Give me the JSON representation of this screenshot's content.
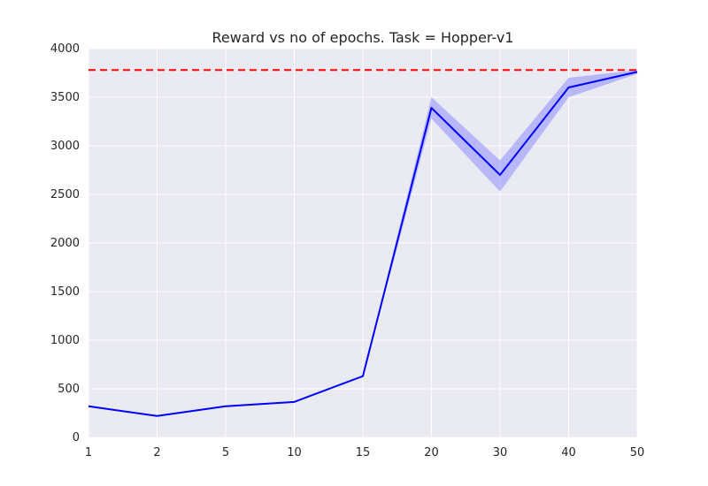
{
  "chart_data": {
    "type": "line",
    "title": "Reward vs no of epochs. Task = Hopper-v1",
    "xlabel": "",
    "ylabel": "",
    "categories": [
      "1",
      "2",
      "5",
      "10",
      "15",
      "20",
      "30",
      "40",
      "50"
    ],
    "x_scale": "categorical",
    "ylim": [
      0,
      4000
    ],
    "yticks": [
      0,
      500,
      1000,
      1500,
      2000,
      2500,
      3000,
      3500,
      4000
    ],
    "grid": true,
    "legend": "none",
    "series": [
      {
        "color": "#0000ff",
        "values": [
          320,
          220,
          320,
          365,
          630,
          3390,
          2700,
          3600,
          3760
        ],
        "band_lower": [
          315,
          215,
          315,
          360,
          625,
          3280,
          2530,
          3500,
          3740
        ],
        "band_upper": [
          325,
          225,
          325,
          370,
          635,
          3500,
          2850,
          3700,
          3780
        ],
        "band_color": "#8c8cff"
      }
    ],
    "reference_lines": [
      {
        "y": 3780,
        "color": "#ff0000",
        "style": "dashed"
      }
    ],
    "background": "#eaeaf2",
    "grid_color": "#ffffff"
  }
}
